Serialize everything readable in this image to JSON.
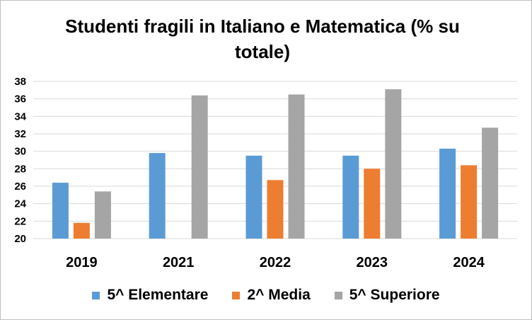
{
  "chart_data": {
    "type": "bar",
    "title": "Studenti fragili in Italiano e Matematica (% su totale)",
    "categories": [
      "2019",
      "2021",
      "2022",
      "2023",
      "2024"
    ],
    "series": [
      {
        "name": "5^ Elementare",
        "color": "#5B9BD5",
        "values": [
          26.4,
          29.8,
          29.5,
          29.5,
          30.3
        ]
      },
      {
        "name": "2^ Media",
        "color": "#ED7D31",
        "values": [
          21.8,
          null,
          26.7,
          28.0,
          28.4
        ]
      },
      {
        "name": "5^ Superiore",
        "color": "#A5A5A5",
        "values": [
          25.4,
          36.4,
          36.5,
          37.1,
          32.7
        ]
      }
    ],
    "ylim": [
      20,
      38
    ],
    "yticks": [
      20,
      22,
      24,
      26,
      28,
      30,
      32,
      34,
      36,
      38
    ],
    "grid": true,
    "legend_position": "bottom"
  }
}
